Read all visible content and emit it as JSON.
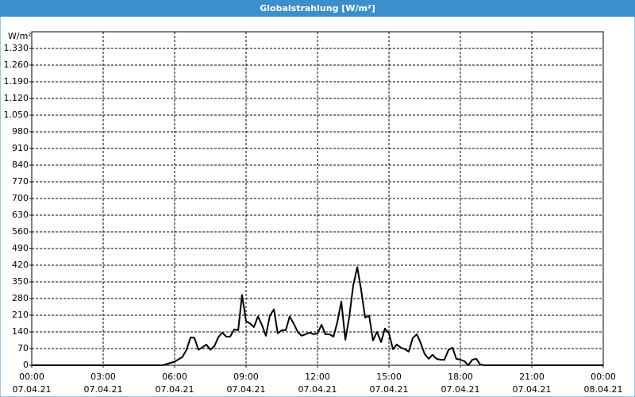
{
  "chart_data": {
    "type": "line",
    "title": "Globalstrahlung [W/m²]",
    "y_label": "W/m²",
    "x": [
      0,
      5.5,
      5.67,
      5.83,
      6,
      6.17,
      6.33,
      6.5,
      6.67,
      6.83,
      7,
      7.17,
      7.33,
      7.5,
      7.67,
      7.83,
      8,
      8.17,
      8.33,
      8.5,
      8.67,
      8.83,
      9,
      9.17,
      9.33,
      9.5,
      9.67,
      9.83,
      10,
      10.17,
      10.33,
      10.5,
      10.67,
      10.83,
      11,
      11.17,
      11.33,
      11.5,
      11.67,
      11.83,
      12,
      12.17,
      12.33,
      12.5,
      12.67,
      12.83,
      13,
      13.17,
      13.33,
      13.5,
      13.67,
      13.83,
      14,
      14.17,
      14.33,
      14.5,
      14.67,
      14.83,
      15,
      15.17,
      15.33,
      15.5,
      15.67,
      15.83,
      16,
      16.17,
      16.33,
      16.5,
      16.67,
      16.83,
      17,
      17.17,
      17.33,
      17.5,
      17.67,
      17.83,
      18,
      18.17,
      18.33,
      18.5,
      18.67,
      18.83,
      19,
      24
    ],
    "values": [
      0,
      0,
      5,
      10,
      15,
      25,
      35,
      65,
      117,
      115,
      65,
      75,
      87,
      65,
      80,
      117,
      137,
      120,
      120,
      150,
      147,
      295,
      185,
      175,
      160,
      205,
      168,
      124,
      208,
      235,
      134,
      147,
      147,
      205,
      175,
      140,
      124,
      130,
      137,
      130,
      134,
      170,
      130,
      130,
      120,
      180,
      268,
      107,
      200,
      335,
      412,
      318,
      200,
      208,
      104,
      140,
      97,
      154,
      134,
      67,
      87,
      74,
      67,
      57,
      114,
      130,
      94,
      47,
      27,
      44,
      27,
      23,
      23,
      64,
      74,
      27,
      23,
      17,
      0,
      23,
      27,
      3,
      0,
      0
    ],
    "color": "#000000",
    "xlim": [
      0,
      24
    ],
    "xticks": [
      {
        "value": 0,
        "label": [
          "00:00",
          "07.04.21"
        ]
      },
      {
        "value": 3,
        "label": [
          "03:00",
          "07.04.21"
        ]
      },
      {
        "value": 6,
        "label": [
          "06:00",
          "07.04.21"
        ]
      },
      {
        "value": 9,
        "label": [
          "09:00",
          "07.04.21"
        ]
      },
      {
        "value": 12,
        "label": [
          "12:00",
          "07.04.21"
        ]
      },
      {
        "value": 15,
        "label": [
          "15:00",
          "07.04.21"
        ]
      },
      {
        "value": 18,
        "label": [
          "18:00",
          "07.04.21"
        ]
      },
      {
        "value": 21,
        "label": [
          "21:00",
          "07.04.21"
        ]
      },
      {
        "value": 24,
        "label": [
          "00:00",
          "08.04.21"
        ]
      }
    ],
    "ylim": [
      0,
      1400
    ],
    "yticks": [
      0,
      70,
      140,
      210,
      280,
      350,
      420,
      490,
      560,
      630,
      700,
      770,
      840,
      910,
      980,
      {
        "value": 1050,
        "label": "1.050"
      },
      {
        "value": 1120,
        "label": "1.120"
      },
      {
        "value": 1190,
        "label": "1.190"
      },
      {
        "value": 1260,
        "label": "1.260"
      },
      {
        "value": 1330,
        "label": "1.330"
      }
    ],
    "grid": true
  }
}
